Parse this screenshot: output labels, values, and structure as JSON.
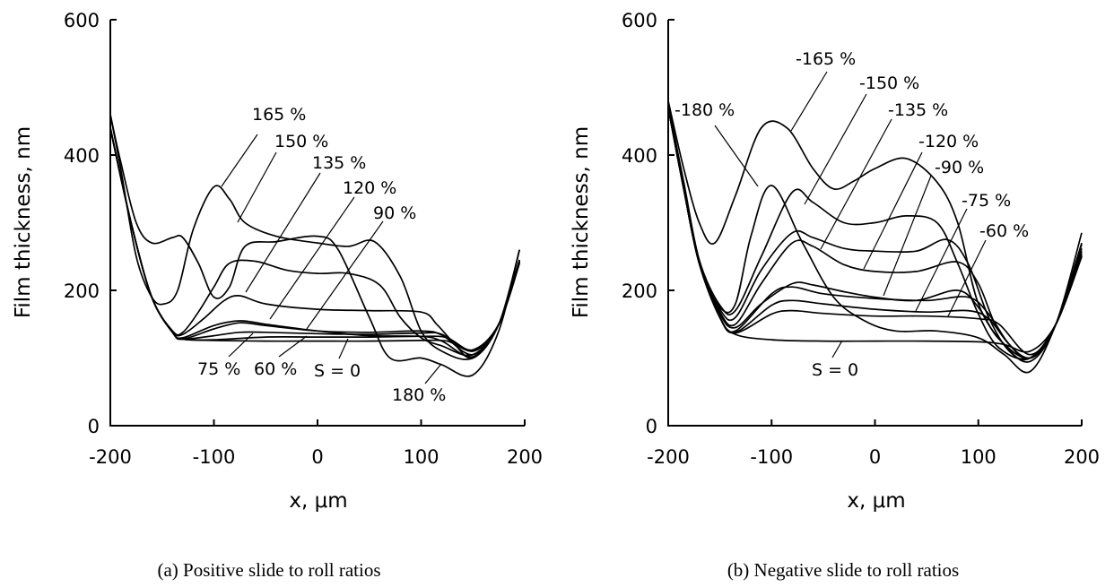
{
  "chart_data": [
    {
      "type": "line",
      "caption": "(a) Positive slide to roll ratios",
      "xlabel": "x, μm",
      "ylabel": "Film thickness, nm",
      "xlim": [
        -200,
        200
      ],
      "ylim": [
        0,
        600
      ],
      "xticks": [
        -200,
        -100,
        0,
        100,
        200
      ],
      "yticks": [
        0,
        200,
        400,
        600
      ],
      "grid": false,
      "series": [
        {
          "name": "S = 0",
          "x": [
            -200,
            -180,
            -160,
            -140,
            -130,
            -100,
            -50,
            0,
            50,
            100,
            125,
            150,
            175,
            195
          ],
          "y": [
            440,
            300,
            190,
            138,
            128,
            126,
            125,
            125,
            125,
            126,
            125,
            112,
            150,
            240
          ]
        },
        {
          "name": "60 %",
          "x": [
            -200,
            -180,
            -160,
            -140,
            -130,
            -100,
            -50,
            0,
            50,
            100,
            125,
            150,
            175,
            195
          ],
          "y": [
            440,
            300,
            190,
            138,
            128,
            127,
            131,
            131,
            131,
            132,
            130,
            112,
            150,
            242
          ]
        },
        {
          "name": "75 %",
          "x": [
            -200,
            -180,
            -160,
            -140,
            -130,
            -100,
            -75,
            -50,
            0,
            50,
            100,
            120,
            150,
            175,
            195
          ],
          "y": [
            440,
            300,
            190,
            138,
            128,
            133,
            138,
            138,
            136,
            135,
            137,
            135,
            110,
            150,
            242
          ]
        },
        {
          "name": "90 %",
          "x": [
            -200,
            -180,
            -160,
            -140,
            -130,
            -100,
            -75,
            -50,
            0,
            50,
            100,
            120,
            150,
            175,
            195
          ],
          "y": [
            440,
            300,
            190,
            138,
            128,
            143,
            152,
            148,
            140,
            138,
            140,
            134,
            105,
            150,
            243
          ]
        },
        {
          "name": "120 %",
          "x": [
            -200,
            -180,
            -160,
            -140,
            -130,
            -100,
            -75,
            -50,
            0,
            50,
            100,
            120,
            150,
            175,
            195
          ],
          "y": [
            440,
            300,
            190,
            138,
            130,
            148,
            155,
            150,
            140,
            133,
            132,
            125,
            102,
            150,
            243
          ]
        },
        {
          "name": "135 %",
          "x": [
            -200,
            -180,
            -160,
            -140,
            -130,
            -110,
            -90,
            -75,
            -50,
            0,
            50,
            100,
            115,
            130,
            150,
            175,
            195
          ],
          "y": [
            440,
            300,
            190,
            140,
            135,
            158,
            185,
            192,
            180,
            172,
            170,
            168,
            150,
            125,
            100,
            150,
            245
          ]
        },
        {
          "name": "150 %",
          "x": [
            -200,
            -180,
            -160,
            -140,
            -130,
            -115,
            -100,
            -85,
            -60,
            -30,
            0,
            30,
            60,
            80,
            100,
            120,
            150,
            175,
            195
          ],
          "y": [
            440,
            300,
            190,
            140,
            138,
            168,
            205,
            240,
            243,
            230,
            225,
            225,
            208,
            160,
            130,
            118,
            105,
            150,
            245
          ]
        },
        {
          "name": "165 %",
          "x": [
            -200,
            -190,
            -175,
            -160,
            -148,
            -135,
            -120,
            -100,
            -85,
            -70,
            -40,
            0,
            30,
            55,
            80,
            100,
            120,
            150,
            175,
            195
          ],
          "y": [
            460,
            380,
            250,
            190,
            180,
            200,
            290,
            353,
            335,
            300,
            280,
            270,
            265,
            272,
            220,
            140,
            110,
            100,
            150,
            260
          ]
        },
        {
          "name": "180 %",
          "x": [
            -200,
            -190,
            -175,
            -160,
            -140,
            -130,
            -115,
            -100,
            -85,
            -70,
            -40,
            0,
            20,
            50,
            70,
            100,
            120,
            150,
            175,
            195
          ],
          "y": [
            460,
            390,
            300,
            270,
            278,
            278,
            240,
            190,
            205,
            265,
            272,
            280,
            260,
            160,
            100,
            100,
            90,
            75,
            140,
            260
          ]
        }
      ],
      "annotations": [
        "165 %",
        "150 %",
        "135 %",
        "120 %",
        "90 %",
        "75 %",
        "60 %",
        "S = 0",
        "180 %"
      ]
    },
    {
      "type": "line",
      "caption": "(b) Negative slide to roll ratios",
      "xlabel": "x, μm",
      "ylabel": "Film thickness, nm",
      "xlim": [
        -200,
        200
      ],
      "ylim": [
        0,
        600
      ],
      "xticks": [
        -200,
        -100,
        0,
        100,
        200
      ],
      "yticks": [
        0,
        200,
        400,
        600
      ],
      "grid": false,
      "series": [
        {
          "name": "S = 0",
          "x": [
            -200,
            -185,
            -170,
            -150,
            -135,
            -100,
            -50,
            0,
            50,
            100,
            125,
            150,
            175,
            200
          ],
          "y": [
            470,
            350,
            240,
            160,
            135,
            127,
            125,
            125,
            125,
            124,
            120,
            110,
            150,
            250
          ]
        },
        {
          "name": "-60 %",
          "x": [
            -200,
            -185,
            -170,
            -150,
            -135,
            -100,
            -80,
            -50,
            0,
            50,
            100,
            120,
            150,
            175,
            200
          ],
          "y": [
            470,
            350,
            240,
            160,
            137,
            165,
            170,
            166,
            162,
            162,
            158,
            150,
            105,
            150,
            250
          ]
        },
        {
          "name": "-75 %",
          "x": [
            -200,
            -185,
            -170,
            -150,
            -135,
            -100,
            -80,
            -50,
            0,
            50,
            90,
            110,
            130,
            150,
            175,
            200
          ],
          "y": [
            470,
            350,
            240,
            160,
            138,
            178,
            185,
            180,
            172,
            168,
            170,
            158,
            120,
            100,
            150,
            252
          ]
        },
        {
          "name": "-90 %",
          "x": [
            -200,
            -185,
            -170,
            -150,
            -135,
            -100,
            -80,
            -50,
            0,
            50,
            90,
            110,
            130,
            150,
            175,
            200
          ],
          "y": [
            470,
            350,
            240,
            160,
            140,
            195,
            205,
            195,
            188,
            185,
            190,
            165,
            120,
            100,
            150,
            252
          ]
        },
        {
          "name": "-120 %",
          "x": [
            -200,
            -185,
            -170,
            -150,
            -135,
            -110,
            -80,
            -60,
            -30,
            0,
            40,
            80,
            100,
            120,
            150,
            175,
            200
          ],
          "y": [
            470,
            350,
            240,
            165,
            145,
            180,
            210,
            208,
            198,
            190,
            185,
            200,
            175,
            128,
            100,
            150,
            255
          ]
        },
        {
          "name": "-135 %",
          "x": [
            -200,
            -185,
            -170,
            -150,
            -135,
            -110,
            -80,
            -60,
            -30,
            0,
            40,
            80,
            100,
            120,
            150,
            175,
            200
          ],
          "y": [
            470,
            350,
            240,
            168,
            150,
            210,
            270,
            265,
            238,
            228,
            228,
            242,
            210,
            140,
            100,
            150,
            258
          ]
        },
        {
          "name": "-150 %",
          "x": [
            -200,
            -185,
            -170,
            -150,
            -135,
            -110,
            -80,
            -60,
            -30,
            0,
            40,
            70,
            90,
            110,
            130,
            150,
            175,
            200
          ],
          "y": [
            470,
            350,
            240,
            172,
            160,
            230,
            285,
            278,
            262,
            258,
            258,
            275,
            240,
            160,
            110,
            100,
            150,
            262
          ]
        },
        {
          "name": "-165 %",
          "x": [
            -200,
            -185,
            -170,
            -150,
            -135,
            -110,
            -80,
            -60,
            -30,
            0,
            30,
            60,
            80,
            100,
            120,
            150,
            175,
            200
          ],
          "y": [
            475,
            360,
            245,
            178,
            170,
            250,
            345,
            330,
            300,
            300,
            310,
            300,
            240,
            165,
            115,
            100,
            150,
            268
          ]
        },
        {
          "name": "-180 %",
          "x": [
            -200,
            -185,
            -170,
            -155,
            -135,
            -110,
            -85,
            -60,
            -40,
            -20,
            0,
            30,
            60,
            80,
            100,
            125,
            150,
            175,
            200
          ],
          "y": [
            480,
            380,
            300,
            270,
            340,
            440,
            440,
            380,
            350,
            362,
            380,
            395,
            360,
            300,
            180,
            120,
            95,
            150,
            285
          ]
        },
        {
          "name": "-180 %",
          "x": [
            -200,
            -185,
            -170,
            -150,
            -135,
            -120,
            -100,
            -70,
            -40,
            -10,
            20,
            60,
            100,
            125,
            150,
            175,
            200
          ],
          "y": [
            470,
            350,
            240,
            175,
            180,
            280,
            355,
            270,
            190,
            155,
            140,
            140,
            130,
            105,
            80,
            150,
            270
          ]
        }
      ],
      "annotations": [
        "-165 %",
        "-150 %",
        "-180 %",
        "-135 %",
        "-120 %",
        "-90 %",
        "-75 %",
        "-60 %",
        "S = 0"
      ]
    }
  ]
}
